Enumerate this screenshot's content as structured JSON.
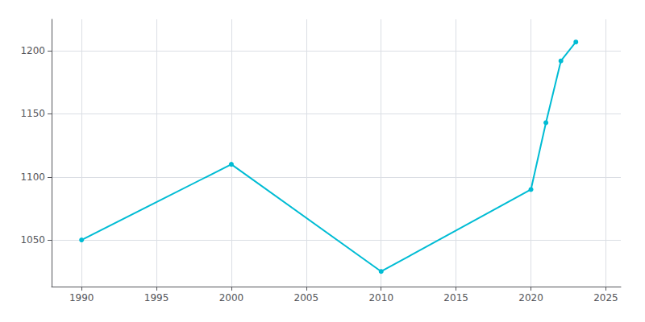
{
  "chart_data": {
    "type": "line",
    "x": [
      1990,
      2000,
      2010,
      2020,
      2021,
      2022,
      2023
    ],
    "values": [
      1050,
      1110,
      1025,
      1090,
      1143,
      1192,
      1207
    ],
    "color": "#00bcd4",
    "marker": "circle",
    "xlim": [
      1988,
      2026
    ],
    "ylim": [
      1013,
      1225
    ],
    "xticks": [
      1990,
      1995,
      2000,
      2005,
      2010,
      2015,
      2020,
      2025
    ],
    "yticks": [
      1050,
      1100,
      1150,
      1200
    ],
    "grid": true
  }
}
